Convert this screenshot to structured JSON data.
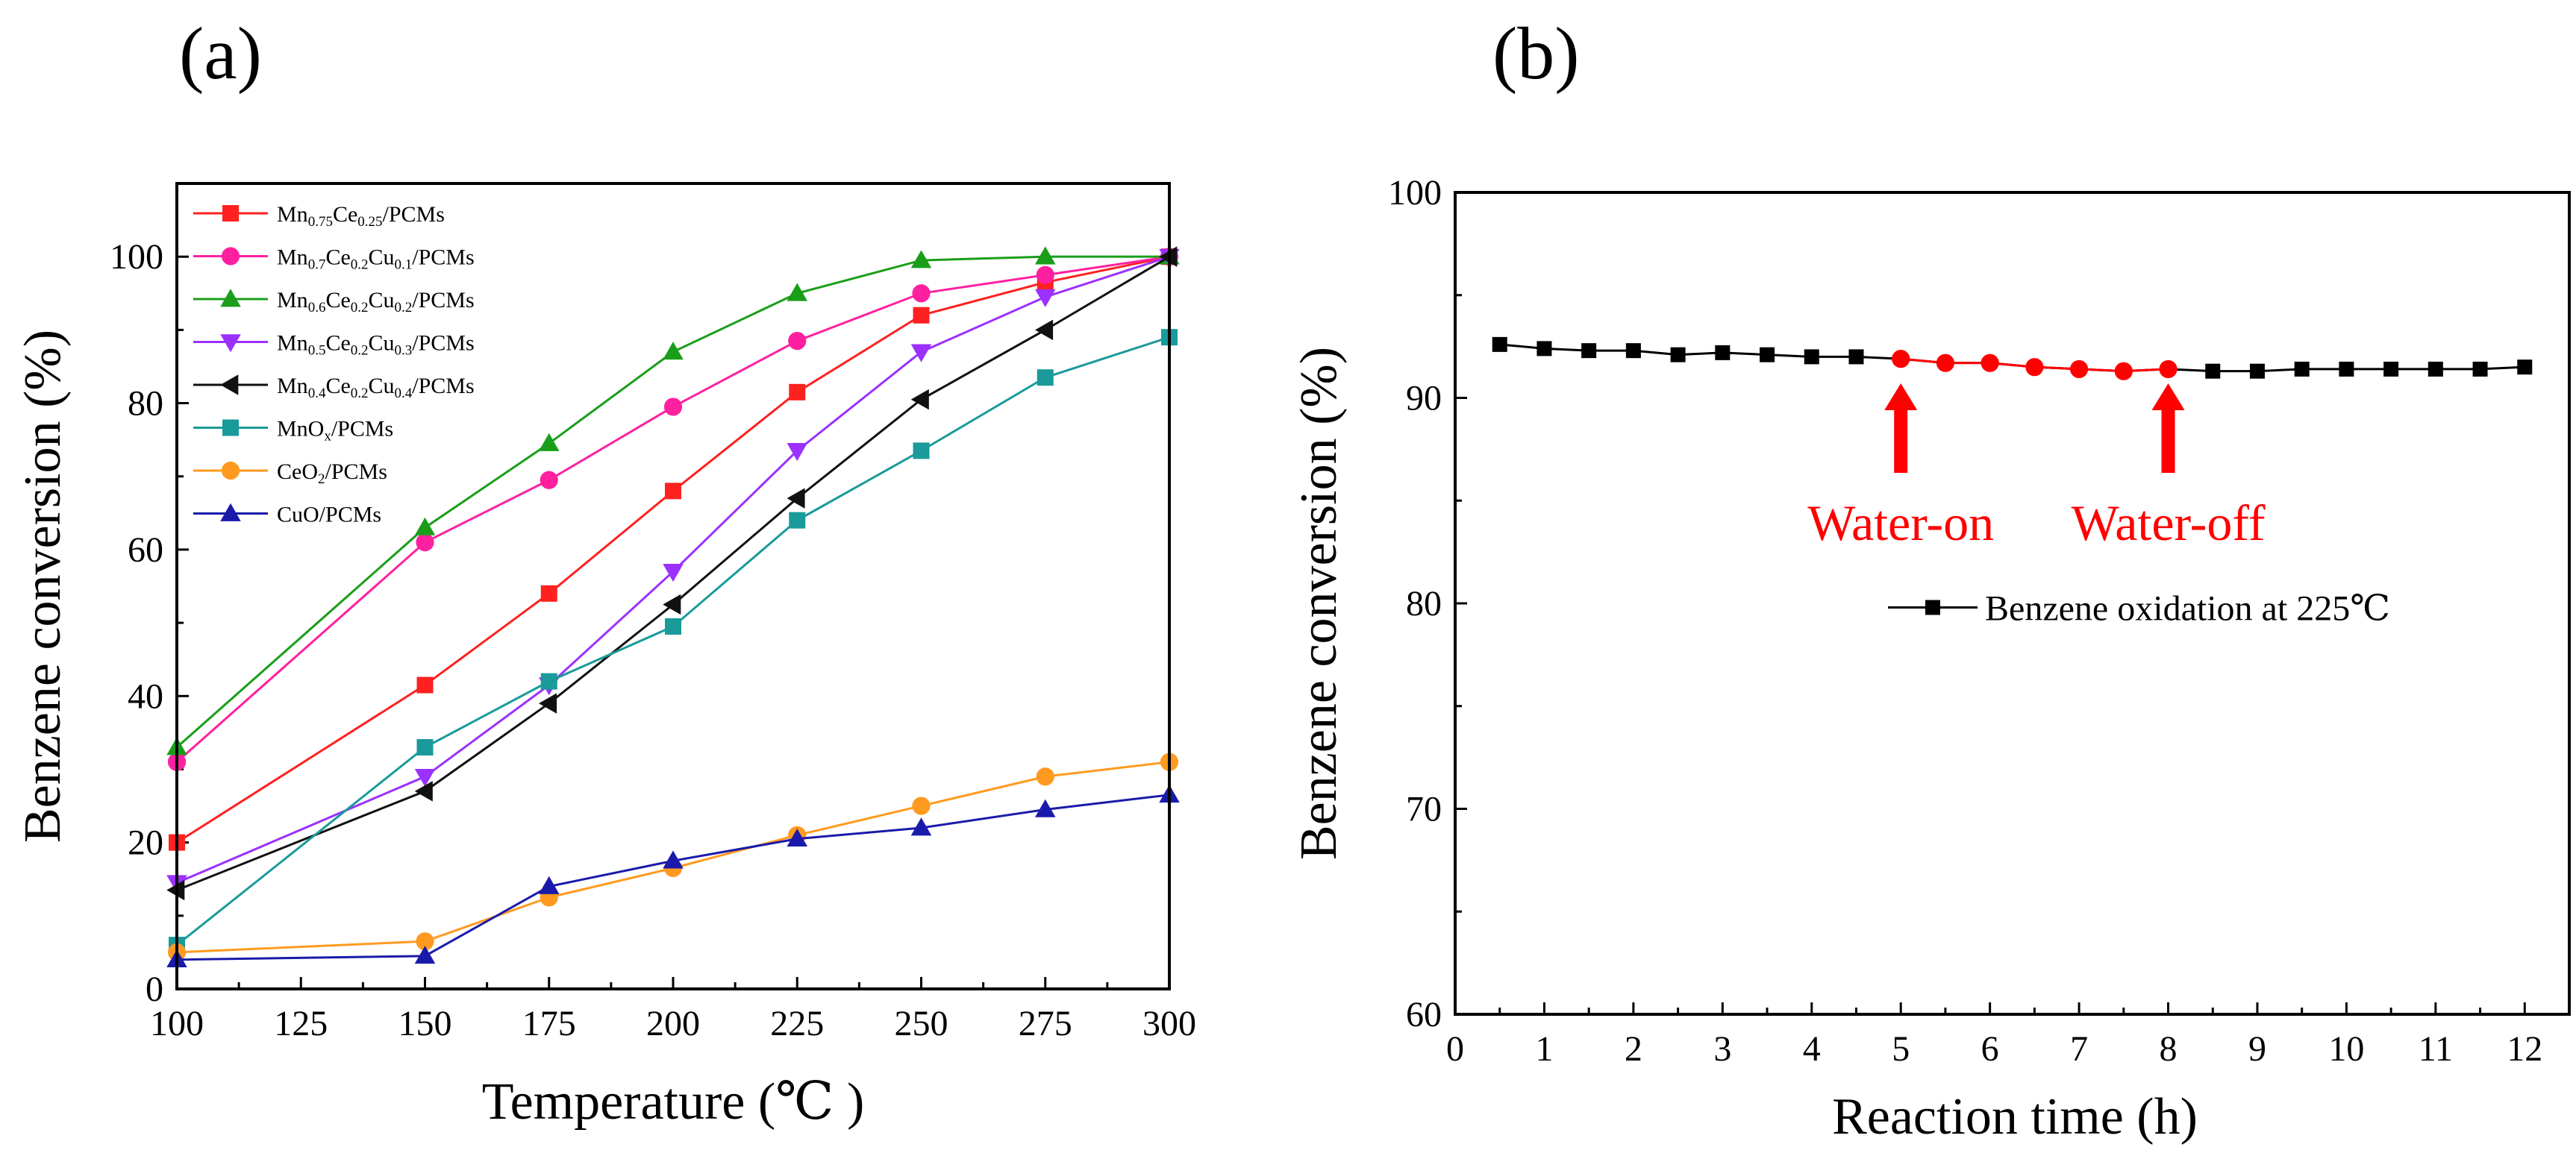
{
  "chart_data": [
    {
      "type": "line",
      "panel_label": "(a)",
      "xlabel": "Temperature (℃ )",
      "ylabel": "Benzene conversion (%)",
      "xlim": [
        100,
        300
      ],
      "ylim": [
        0,
        110
      ],
      "xticks": [
        "100",
        "125",
        "150",
        "175",
        "200",
        "225",
        "250",
        "275",
        "300"
      ],
      "yticks": [
        "0",
        "20",
        "40",
        "60",
        "80",
        "100"
      ],
      "x": [
        100,
        150,
        175,
        200,
        225,
        250,
        275,
        300
      ],
      "legend_position": "top-left",
      "series": [
        {
          "name": "Mn0.75Ce0.25/PCMs",
          "legend": {
            "parts": [
              [
                "Mn",
                ""
              ],
              [
                "0.75",
                "sub"
              ],
              [
                "Ce",
                ""
              ],
              [
                "0.25",
                "sub"
              ],
              [
                "/PCMs",
                ""
              ]
            ]
          },
          "color": "#ff2020",
          "marker": "square",
          "values": [
            20,
            41.5,
            54,
            68,
            81.5,
            92,
            96.5,
            100
          ]
        },
        {
          "name": "Mn0.7Ce0.2Cu0.1/PCMs",
          "legend": {
            "parts": [
              [
                "Mn",
                ""
              ],
              [
                "0.7",
                "sub"
              ],
              [
                "Ce",
                ""
              ],
              [
                "0.2",
                "sub"
              ],
              [
                "Cu",
                ""
              ],
              [
                "0.1",
                "sub"
              ],
              [
                "/PCMs",
                ""
              ]
            ]
          },
          "color": "#ff20a0",
          "marker": "circle",
          "values": [
            31,
            61,
            69.5,
            79.5,
            88.5,
            95,
            97.5,
            100
          ]
        },
        {
          "name": "Mn0.6Ce0.2Cu0.2/PCMs",
          "legend": {
            "parts": [
              [
                "Mn",
                ""
              ],
              [
                "0.6",
                "sub"
              ],
              [
                "Ce",
                ""
              ],
              [
                "0.2",
                "sub"
              ],
              [
                "Cu",
                ""
              ],
              [
                "0.2",
                "sub"
              ],
              [
                "/PCMs",
                ""
              ]
            ]
          },
          "color": "#1a9e1a",
          "marker": "triangle-up",
          "values": [
            33,
            63,
            74.5,
            87,
            95,
            99.5,
            100,
            100
          ]
        },
        {
          "name": "Mn0.5Ce0.2Cu0.3/PCMs",
          "legend": {
            "parts": [
              [
                "Mn",
                ""
              ],
              [
                "0.5",
                "sub"
              ],
              [
                "Ce",
                ""
              ],
              [
                "0.2",
                "sub"
              ],
              [
                "Cu",
                ""
              ],
              [
                "0.3",
                "sub"
              ],
              [
                "/PCMs",
                ""
              ]
            ]
          },
          "color": "#9b30ff",
          "marker": "triangle-down",
          "values": [
            14.5,
            29,
            41.5,
            57,
            73.5,
            87,
            94.5,
            100
          ]
        },
        {
          "name": "Mn0.4Ce0.2Cu0.4/PCMs",
          "legend": {
            "parts": [
              [
                "Mn",
                ""
              ],
              [
                "0.4",
                "sub"
              ],
              [
                "Ce",
                ""
              ],
              [
                "0.2",
                "sub"
              ],
              [
                "Cu",
                ""
              ],
              [
                "0.4",
                "sub"
              ],
              [
                "/PCMs",
                ""
              ]
            ]
          },
          "color": "#111111",
          "marker": "triangle-left",
          "values": [
            13.5,
            27,
            39,
            52.5,
            67,
            80.5,
            90,
            100
          ]
        },
        {
          "name": "MnOx/PCMs",
          "legend": {
            "parts": [
              [
                "MnO",
                ""
              ],
              [
                "x",
                "sub"
              ],
              [
                "/PCMs",
                ""
              ]
            ]
          },
          "color": "#1a9a9a",
          "marker": "square",
          "values": [
            6,
            33,
            42,
            49.5,
            64,
            73.5,
            83.5,
            89
          ]
        },
        {
          "name": "CeO2/PCMs",
          "legend": {
            "parts": [
              [
                "CeO",
                ""
              ],
              [
                "2",
                "sub"
              ],
              [
                "/PCMs",
                ""
              ]
            ]
          },
          "color": "#ff9a20",
          "marker": "circle",
          "values": [
            5,
            6.5,
            12.5,
            16.5,
            21,
            25,
            29,
            31
          ]
        },
        {
          "name": "CuO/PCMs",
          "legend": {
            "parts": [
              [
                "CuO/PCMs",
                ""
              ]
            ]
          },
          "color": "#1a1aaa",
          "marker": "triangle-up",
          "values": [
            4,
            4.5,
            14,
            17.5,
            20.5,
            22,
            24.5,
            26.5
          ]
        }
      ]
    },
    {
      "type": "line",
      "panel_label": "(b)",
      "xlabel": "Reaction time (h)",
      "ylabel": "Benzene conversion (%)",
      "xlim": [
        0,
        12.5
      ],
      "ylim": [
        60,
        100
      ],
      "xticks": [
        "0",
        "1",
        "2",
        "3",
        "4",
        "5",
        "6",
        "7",
        "8",
        "9",
        "10",
        "11",
        "12"
      ],
      "yticks": [
        "60",
        "70",
        "80",
        "90",
        "100"
      ],
      "legend_position": "right",
      "series": [
        {
          "name": "Benzene oxidation at 225℃",
          "color": "#000000",
          "marker": "square",
          "x": [
            0.5,
            1,
            1.5,
            2,
            2.5,
            3,
            3.5,
            4,
            4.5,
            5,
            5.5,
            6,
            6.5,
            7,
            7.5,
            8,
            8.5,
            9,
            9.5,
            10,
            10.5,
            11,
            11.5,
            12
          ],
          "values": [
            92.6,
            92.4,
            92.3,
            92.3,
            92.1,
            92.2,
            92.1,
            92.0,
            92.0,
            91.9,
            91.7,
            91.7,
            91.5,
            91.4,
            91.3,
            91.4,
            91.3,
            91.3,
            91.4,
            91.4,
            91.4,
            91.4,
            91.4,
            91.5
          ],
          "highlight": {
            "from_x": 5,
            "to_x": 8,
            "color": "#ff0000"
          }
        }
      ],
      "annotations": [
        {
          "text": "Water-on",
          "at_x": 5,
          "color": "#ff0000"
        },
        {
          "text": "Water-off",
          "at_x": 8,
          "color": "#ff0000"
        }
      ]
    }
  ]
}
